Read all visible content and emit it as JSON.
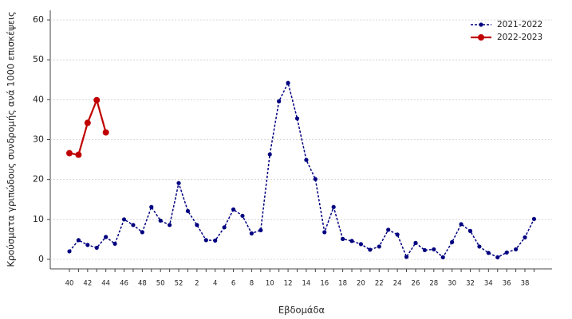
{
  "chart_data": {
    "type": "line",
    "xlabel": "Εβδομάδα",
    "ylabel": "Κρούσματα γριπώδους συνδρομής ανά 1000 επισκέψεις",
    "categories": [
      "40",
      null,
      "42",
      null,
      "44",
      null,
      "46",
      null,
      "48",
      null,
      "50",
      null,
      "52",
      null,
      "2",
      null,
      "4",
      null,
      "6",
      null,
      "8",
      null,
      "10",
      null,
      "12",
      null,
      "14",
      null,
      "16",
      null,
      "18",
      null,
      "20",
      null,
      "22",
      null,
      "24",
      null,
      "26",
      null,
      "28",
      null,
      "30",
      null,
      "32",
      null,
      "34",
      null,
      "36",
      null,
      "38",
      null
    ],
    "series": [
      {
        "name": "2021-2022",
        "color": "#000080",
        "line_style": "dashed",
        "values": [
          2,
          4.8,
          3.6,
          2.9,
          5.6,
          3.9,
          10,
          8.6,
          6.8,
          13.1,
          9.7,
          8.6,
          19.1,
          12.1,
          8.6,
          4.8,
          4.7,
          8,
          12.5,
          10.9,
          6.5,
          7.3,
          26.3,
          39.6,
          44.2,
          35.3,
          24.9,
          20.1,
          6.8,
          13.1,
          5.1,
          4.6,
          3.8,
          2.4,
          3.2,
          7.4,
          6.2,
          0.6,
          4.1,
          2.3,
          2.5,
          0.5,
          4.3,
          8.8,
          7.1,
          3.2,
          1.6,
          0.5,
          1.7,
          2.5,
          5.5,
          10.1
        ]
      },
      {
        "name": "2022-2023",
        "color": "#c00000",
        "line_style": "solid",
        "values": [
          26.6,
          26.2,
          34.2,
          39.9,
          31.8,
          null,
          null,
          null,
          null,
          null,
          null,
          null,
          null,
          null,
          null,
          null,
          null,
          null,
          null,
          null,
          null,
          null,
          null,
          null,
          null,
          null,
          null,
          null,
          null,
          null,
          null,
          null,
          null,
          null,
          null,
          null,
          null,
          null,
          null,
          null,
          null,
          null,
          null,
          null,
          null,
          null,
          null,
          null,
          null,
          null,
          null,
          null
        ]
      }
    ],
    "ylim": [
      -2.4,
      62.4
    ],
    "yticks": [
      0,
      10,
      20,
      30,
      40,
      50,
      60
    ],
    "grid": true,
    "legend": "upper right"
  }
}
